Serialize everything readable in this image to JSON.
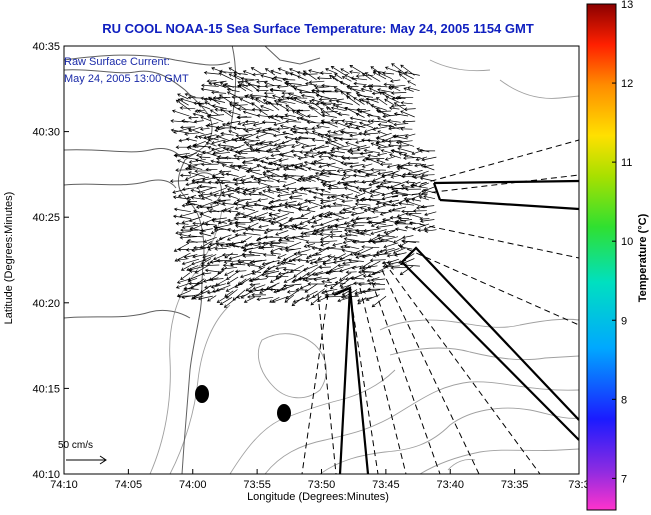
{
  "chart_data": {
    "type": "vector-field-map",
    "title": "RU COOL  NOAA-15  Sea Surface Temperature:  May 24, 2005 1154 GMT",
    "xlabel": "Longitude (Degrees:Minutes)",
    "ylabel": "Latitude (Degrees:Minutes)",
    "x_ticks": [
      "74:10",
      "74:05",
      "74:00",
      "73:55",
      "73:50",
      "73:45",
      "73:40",
      "73:35",
      "73:3"
    ],
    "y_ticks": [
      "40:35",
      "40:30",
      "40:25",
      "40:20",
      "40:15",
      "40:10"
    ],
    "xlim": [
      -74.1667,
      -73.5
    ],
    "ylim": [
      40.1667,
      40.5833
    ],
    "annotation_lines": [
      "Raw Surface Current:",
      "May 24, 2005 13:00 GMT"
    ],
    "scale_label": "50 cm/s",
    "colorbar": {
      "label": "Temperature (°C)",
      "ticks": [
        "7",
        "8",
        "9",
        "10",
        "11",
        "12",
        "13"
      ],
      "range": [
        6.6,
        13
      ]
    },
    "colors": {
      "title": "#1020c0",
      "annotation": "#1a2aa8",
      "land_contour": "#555555",
      "bathymetry": "#999999",
      "vectors": "#000000"
    }
  }
}
